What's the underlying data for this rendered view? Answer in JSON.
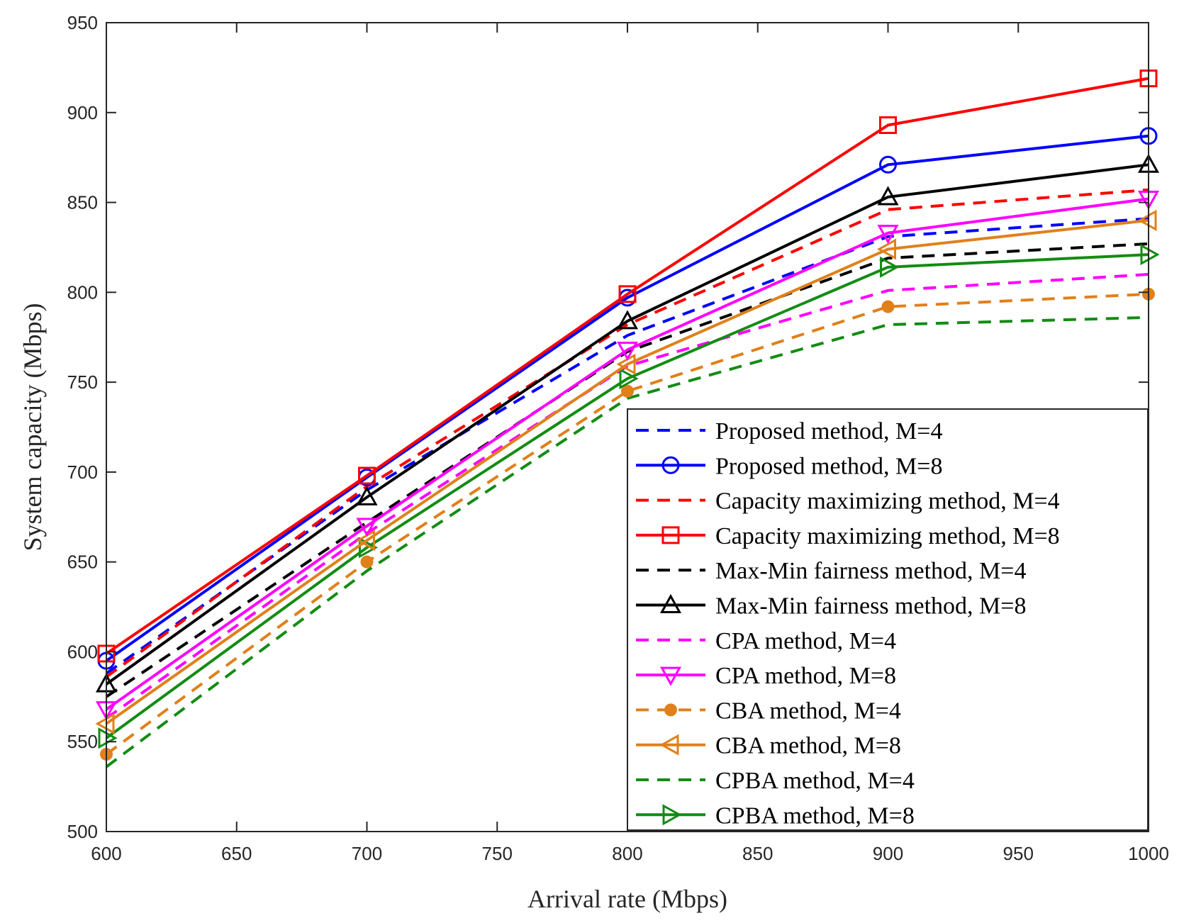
{
  "chart_data": {
    "type": "line",
    "xlabel": "Arrival rate (Mbps)",
    "ylabel": "System capacity (Mbps)",
    "xlim": [
      600,
      1000
    ],
    "ylim": [
      500,
      950
    ],
    "xticks": [
      600,
      650,
      700,
      750,
      800,
      850,
      900,
      950,
      1000
    ],
    "yticks": [
      500,
      550,
      600,
      650,
      700,
      750,
      800,
      850,
      900,
      950
    ],
    "grid": false,
    "legend_position": "bottom-right",
    "x": [
      600,
      700,
      800,
      900,
      1000
    ],
    "series": [
      {
        "name": "Proposed method, M=4",
        "color": "#0000ff",
        "dashed": true,
        "marker": "none",
        "values": [
          588,
          690,
          776,
          831,
          841
        ]
      },
      {
        "name": "Proposed method, M=8",
        "color": "#0000ff",
        "dashed": false,
        "marker": "circle",
        "values": [
          595,
          697,
          797,
          871,
          887
        ]
      },
      {
        "name": "Capacity maximizing method, M=4",
        "color": "#ff0000",
        "dashed": true,
        "marker": "none",
        "values": [
          586,
          692,
          782,
          846,
          857
        ]
      },
      {
        "name": "Capacity maximizing method, M=8",
        "color": "#ff0000",
        "dashed": false,
        "marker": "square",
        "values": [
          599,
          698,
          799,
          893,
          919
        ]
      },
      {
        "name": "Max-Min fairness method, M=4",
        "color": "#000000",
        "dashed": true,
        "marker": "none",
        "values": [
          575,
          672,
          767,
          819,
          827
        ]
      },
      {
        "name": "Max-Min fairness method, M=8",
        "color": "#000000",
        "dashed": false,
        "marker": "triangle-up",
        "values": [
          582,
          686,
          784,
          853,
          871
        ]
      },
      {
        "name": "CPA method, M=4",
        "color": "#ff00ff",
        "dashed": true,
        "marker": "none",
        "values": [
          563,
          666,
          759,
          801,
          810
        ]
      },
      {
        "name": "CPA method, M=8",
        "color": "#ff00ff",
        "dashed": false,
        "marker": "triangle-down",
        "values": [
          568,
          670,
          768,
          833,
          852
        ]
      },
      {
        "name": "CBA method, M=4",
        "color": "#e0801b",
        "dashed": true,
        "marker": "dot",
        "values": [
          543,
          650,
          745,
          792,
          799
        ]
      },
      {
        "name": "CBA method, M=8",
        "color": "#e0801b",
        "dashed": false,
        "marker": "triangle-left",
        "values": [
          560,
          662,
          760,
          824,
          840
        ]
      },
      {
        "name": "CPBA method, M=4",
        "color": "#138c13",
        "dashed": true,
        "marker": "none",
        "values": [
          536,
          645,
          741,
          782,
          786
        ]
      },
      {
        "name": "CPBA method, M=8",
        "color": "#138c13",
        "dashed": false,
        "marker": "triangle-right",
        "values": [
          552,
          658,
          752,
          814,
          821
        ]
      }
    ]
  }
}
